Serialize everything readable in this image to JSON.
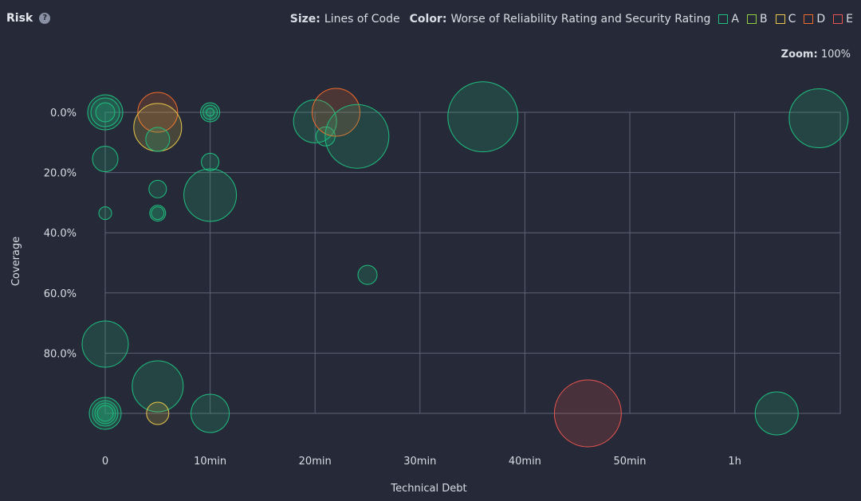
{
  "header": {
    "title": "Risk",
    "help": "?",
    "size_label": "Size:",
    "size_value": "Lines of Code",
    "color_label": "Color:",
    "color_value": "Worse of Reliability Rating and Security Rating",
    "legend": [
      {
        "label": "A",
        "color": "#1fbf7f"
      },
      {
        "label": "B",
        "color": "#8fcf3f"
      },
      {
        "label": "C",
        "color": "#e6c84a"
      },
      {
        "label": "D",
        "color": "#f26b2a"
      },
      {
        "label": "E",
        "color": "#e8544f"
      }
    ],
    "zoom_label": "Zoom:",
    "zoom_value": "100%"
  },
  "chart_data": {
    "type": "scatter",
    "xlabel": "Technical Debt",
    "ylabel": "Coverage",
    "x_unit": "minutes",
    "xlim": [
      0,
      70
    ],
    "ylim": [
      0,
      100
    ],
    "y_inverted": true,
    "x_ticks": [
      {
        "value": 0,
        "label": "0"
      },
      {
        "value": 10,
        "label": "10min"
      },
      {
        "value": 20,
        "label": "20min"
      },
      {
        "value": 30,
        "label": "30min"
      },
      {
        "value": 40,
        "label": "40min"
      },
      {
        "value": 50,
        "label": "50min"
      },
      {
        "value": 60,
        "label": "1h"
      }
    ],
    "y_ticks": [
      {
        "value": 0,
        "label": "0.0%"
      },
      {
        "value": 20,
        "label": "20.0%"
      },
      {
        "value": 40,
        "label": "40.0%"
      },
      {
        "value": 60,
        "label": "60.0%"
      },
      {
        "value": 80,
        "label": "80.0%"
      }
    ],
    "grid": true,
    "points": [
      {
        "x": 0,
        "y": 0,
        "size": 22,
        "rating": "A"
      },
      {
        "x": 0,
        "y": 0,
        "size": 18,
        "rating": "A"
      },
      {
        "x": 0,
        "y": 0,
        "size": 12,
        "rating": "A"
      },
      {
        "x": 5,
        "y": 0,
        "size": 25,
        "rating": "D"
      },
      {
        "x": 5,
        "y": 5,
        "size": 30,
        "rating": "C"
      },
      {
        "x": 5,
        "y": 9,
        "size": 15,
        "rating": "A"
      },
      {
        "x": 10,
        "y": 0,
        "size": 12,
        "rating": "A"
      },
      {
        "x": 10,
        "y": 0,
        "size": 9,
        "rating": "A"
      },
      {
        "x": 10,
        "y": 0,
        "size": 5,
        "rating": "A"
      },
      {
        "x": 0,
        "y": 15.5,
        "size": 16,
        "rating": "A"
      },
      {
        "x": 10,
        "y": 16.5,
        "size": 11,
        "rating": "A"
      },
      {
        "x": 5,
        "y": 25.5,
        "size": 11,
        "rating": "A"
      },
      {
        "x": 5,
        "y": 33.5,
        "size": 10,
        "rating": "A"
      },
      {
        "x": 5,
        "y": 33.5,
        "size": 8,
        "rating": "A"
      },
      {
        "x": 0,
        "y": 33.5,
        "size": 8,
        "rating": "A"
      },
      {
        "x": 10,
        "y": 27.5,
        "size": 33,
        "rating": "A"
      },
      {
        "x": 20,
        "y": 3,
        "size": 27,
        "rating": "A"
      },
      {
        "x": 21,
        "y": 8,
        "size": 12,
        "rating": "A"
      },
      {
        "x": 22,
        "y": 0,
        "size": 30,
        "rating": "D"
      },
      {
        "x": 24,
        "y": 8,
        "size": 40,
        "rating": "A"
      },
      {
        "x": 36,
        "y": 1.5,
        "size": 44,
        "rating": "A"
      },
      {
        "x": 68,
        "y": 2,
        "size": 37,
        "rating": "A"
      },
      {
        "x": 25,
        "y": 54,
        "size": 12,
        "rating": "A"
      },
      {
        "x": 0,
        "y": 77,
        "size": 29,
        "rating": "A"
      },
      {
        "x": 5,
        "y": 91,
        "size": 32,
        "rating": "A"
      },
      {
        "x": 0,
        "y": 100,
        "size": 20,
        "rating": "A"
      },
      {
        "x": 0,
        "y": 100,
        "size": 16,
        "rating": "A"
      },
      {
        "x": 0,
        "y": 100,
        "size": 13,
        "rating": "A"
      },
      {
        "x": 0,
        "y": 100,
        "size": 10,
        "rating": "A"
      },
      {
        "x": 5,
        "y": 100,
        "size": 14,
        "rating": "C"
      },
      {
        "x": 10,
        "y": 100,
        "size": 24,
        "rating": "A"
      },
      {
        "x": 46,
        "y": 100,
        "size": 42,
        "rating": "E"
      },
      {
        "x": 64,
        "y": 100,
        "size": 27,
        "rating": "A"
      }
    ]
  }
}
